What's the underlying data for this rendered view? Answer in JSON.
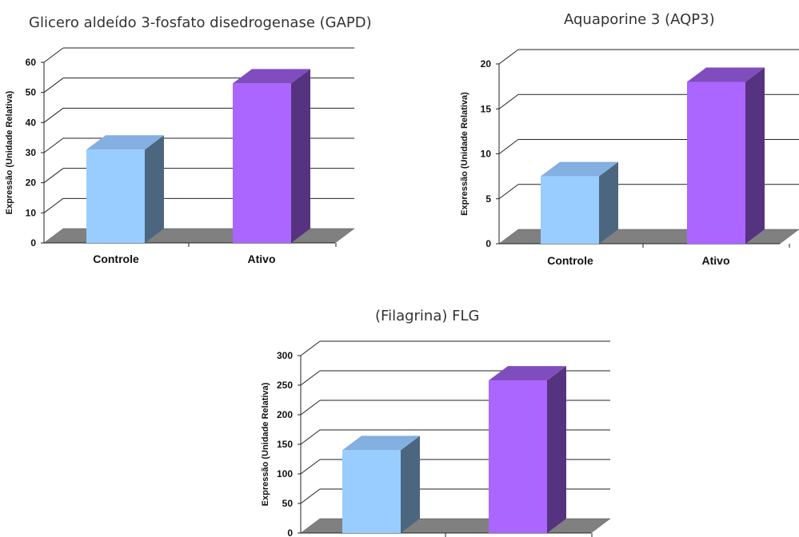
{
  "chart_data": [
    {
      "type": "bar",
      "title": "Glicero aldeído 3-fosfato disedrogenase (GAPD)",
      "ylabel": "Expressão (Unidade Relativa)",
      "categories": [
        "Controle",
        "Ativo"
      ],
      "values": [
        31,
        53
      ],
      "ylim": [
        0,
        60
      ],
      "yticks": [
        0,
        10,
        20,
        30,
        40,
        50,
        60
      ],
      "grid": true,
      "colors": [
        "#99ccff",
        "#aa66ff"
      ]
    },
    {
      "type": "bar",
      "title": "Aquaporine 3 (AQP3)",
      "ylabel": "Expressão (Unidade Relativa)",
      "categories": [
        "Controle",
        "Ativo"
      ],
      "values": [
        7.5,
        18
      ],
      "ylim": [
        0,
        20
      ],
      "yticks": [
        0,
        5,
        10,
        15,
        20
      ],
      "grid": true,
      "colors": [
        "#99ccff",
        "#aa66ff"
      ]
    },
    {
      "type": "bar",
      "title": "(Filagrina) FLG",
      "ylabel": "Expressão (Unidade Relativa)",
      "categories": [
        "",
        ""
      ],
      "values": [
        140,
        258
      ],
      "ylim": [
        0,
        300
      ],
      "yticks": [
        0,
        50,
        100,
        150,
        200,
        250,
        300
      ],
      "grid": true,
      "colors": [
        "#99ccff",
        "#aa66ff"
      ]
    }
  ]
}
